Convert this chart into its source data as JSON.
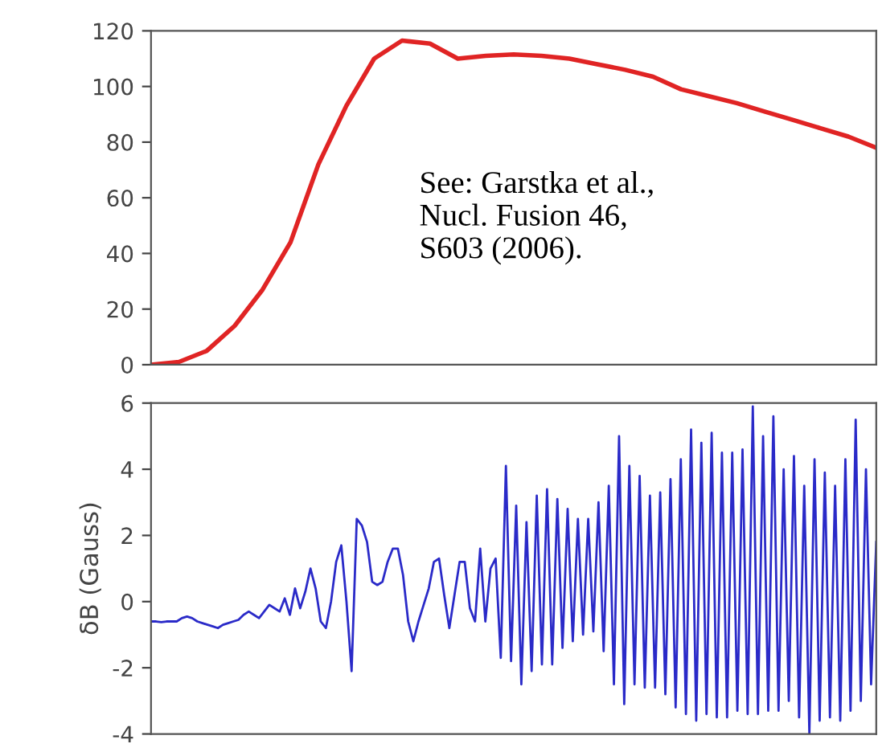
{
  "chart_data": [
    {
      "type": "line",
      "categories": [
        null,
        null,
        null,
        null,
        null,
        null,
        null,
        null,
        null,
        null,
        null,
        null,
        null,
        null,
        null,
        null,
        null,
        null,
        null,
        null,
        null,
        null,
        null,
        null,
        null,
        null,
        null
      ],
      "series": [
        {
          "color": "#e02424",
          "values": [
            0,
            1,
            5,
            14,
            27,
            44,
            72,
            93,
            110,
            116.5,
            115.4,
            110,
            111,
            111.5,
            111,
            110,
            108,
            106,
            103.5,
            99,
            96.5,
            94,
            91,
            88,
            85,
            82,
            78
          ]
        }
      ],
      "ylim": [
        0,
        120
      ],
      "yticks": [
        0,
        20,
        40,
        60,
        80,
        100,
        120
      ],
      "tick_labels": "y",
      "marker": "none",
      "line_style": "solid",
      "annotations": [
        "See: Garstka et al.,\nNucl. Fusion 46,\nS603 (2006)."
      ]
    },
    {
      "type": "line",
      "ylabel": "δB (Gauss)",
      "categories": [
        null,
        null,
        null,
        null,
        null,
        null,
        null,
        null,
        null,
        null,
        null,
        null,
        null,
        null,
        null,
        null,
        null,
        null,
        null,
        null,
        null,
        null,
        null,
        null,
        null,
        null,
        null,
        null,
        null,
        null,
        null,
        null,
        null,
        null,
        null,
        null,
        null,
        null,
        null,
        null,
        null,
        null,
        null,
        null,
        null,
        null,
        null,
        null,
        null,
        null,
        null,
        null,
        null,
        null,
        null,
        null,
        null,
        null,
        null,
        null,
        null,
        null,
        null,
        null,
        null,
        null,
        null,
        null,
        null,
        null,
        null,
        null,
        null,
        null,
        null,
        null,
        null,
        null,
        null,
        null,
        null,
        null,
        null,
        null,
        null,
        null,
        null,
        null,
        null,
        null,
        null,
        null,
        null,
        null,
        null,
        null,
        null,
        null,
        null,
        null,
        null,
        null,
        null,
        null,
        null,
        null,
        null,
        null,
        null,
        null,
        null,
        null,
        null,
        null,
        null,
        null,
        null,
        null,
        null,
        null,
        null,
        null,
        null,
        null,
        null,
        null,
        null,
        null,
        null,
        null,
        null,
        null,
        null,
        null,
        null,
        null,
        null,
        null,
        null,
        null,
        null,
        null
      ],
      "series": [
        {
          "color": "#2a2ac8",
          "values": [
            -0.6,
            -0.6,
            -0.62,
            -0.6,
            -0.6,
            -0.6,
            -0.5,
            -0.45,
            -0.5,
            -0.6,
            -0.65,
            -0.7,
            -0.75,
            -0.8,
            -0.7,
            -0.65,
            -0.6,
            -0.55,
            -0.4,
            -0.3,
            -0.4,
            -0.5,
            -0.3,
            -0.1,
            -0.2,
            -0.3,
            0.1,
            -0.4,
            0.4,
            -0.2,
            0.3,
            1.0,
            0.4,
            -0.6,
            -0.8,
            0.0,
            1.2,
            1.7,
            0.0,
            -2.1,
            2.5,
            2.3,
            1.8,
            0.6,
            0.5,
            0.6,
            1.2,
            1.6,
            1.6,
            0.8,
            -0.6,
            -1.2,
            -0.6,
            -0.1,
            0.4,
            1.2,
            1.3,
            0.2,
            -0.8,
            0.2,
            1.2,
            1.2,
            -0.2,
            -0.6,
            1.6,
            -0.6,
            1.0,
            1.3,
            -1.7,
            4.1,
            -1.8,
            2.9,
            -2.5,
            2.4,
            -2.1,
            3.2,
            -1.9,
            3.4,
            -1.9,
            3.1,
            -1.4,
            2.8,
            -1.2,
            2.5,
            -1,
            2.5,
            -0.9,
            3.0,
            -1.5,
            3.5,
            -2.5,
            5.0,
            -3.1,
            4.1,
            -2.5,
            3.8,
            -2.6,
            3.2,
            -2.6,
            3.3,
            -2.8,
            3.7,
            -3.2,
            4.3,
            -3.4,
            5.2,
            -3.6,
            4.8,
            -3.4,
            5.1,
            -3.5,
            4.5,
            -3.5,
            4.5,
            -3.3,
            4.6,
            -3.4,
            5.9,
            -3.4,
            5.0,
            -3.3,
            5.6,
            -3.3,
            4.0,
            -3.0,
            4.4,
            -3.5,
            3.5,
            -4.0,
            4.3,
            -3.6,
            3.9,
            -3.5,
            3.5,
            -3.6,
            4.3,
            -3.3,
            5.5,
            -3.0,
            4.0,
            -2.5,
            1.8
          ]
        }
      ],
      "ylim": [
        -4,
        6
      ],
      "yticks": [
        -4,
        -2,
        0,
        2,
        4,
        6
      ],
      "tick_labels": "y",
      "marker": "none",
      "line_style": "solid"
    }
  ]
}
